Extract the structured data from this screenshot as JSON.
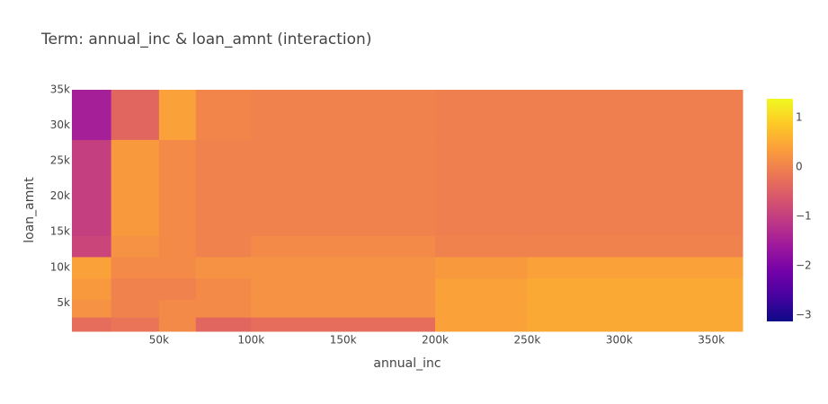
{
  "chart_data": {
    "type": "heatmap",
    "title": "Term: annual_inc & loan_amnt (interaction)",
    "x_label": "annual_inc",
    "y_label": "loan_amnt",
    "x_edges": [
      2700,
      24000,
      50000,
      70000,
      100000,
      200000,
      250000,
      367000
    ],
    "y_edges": [
      1000,
      3000,
      5500,
      8500,
      11500,
      14500,
      28000,
      35000
    ],
    "z": [
      [
        -0.3,
        -0.2,
        0.1,
        -0.4,
        -0.3,
        0.4,
        0.5
      ],
      [
        0.2,
        0.0,
        0.1,
        0.1,
        0.2,
        0.4,
        0.5
      ],
      [
        0.3,
        0.0,
        0.0,
        0.1,
        0.2,
        0.4,
        0.5
      ],
      [
        0.4,
        0.1,
        0.1,
        0.2,
        0.2,
        0.3,
        0.4
      ],
      [
        -0.9,
        0.2,
        0.1,
        0.0,
        0.1,
        0.0,
        0.0
      ],
      [
        -1.0,
        0.3,
        0.1,
        0.0,
        0.0,
        -0.05,
        -0.05
      ],
      [
        -1.5,
        -0.4,
        0.4,
        0.05,
        0.0,
        -0.05,
        -0.05
      ]
    ],
    "xlim": [
      2700,
      367000
    ],
    "ylim": [
      1000,
      35000
    ],
    "zlim": [
      -3.13,
      1.38
    ],
    "xticks": [
      {
        "value": 50000,
        "label": "50k"
      },
      {
        "value": 100000,
        "label": "100k"
      },
      {
        "value": 150000,
        "label": "150k"
      },
      {
        "value": 200000,
        "label": "200k"
      },
      {
        "value": 250000,
        "label": "250k"
      },
      {
        "value": 300000,
        "label": "300k"
      },
      {
        "value": 350000,
        "label": "350k"
      }
    ],
    "yticks": [
      {
        "value": 5000,
        "label": "5k"
      },
      {
        "value": 10000,
        "label": "10k"
      },
      {
        "value": 15000,
        "label": "15k"
      },
      {
        "value": 20000,
        "label": "20k"
      },
      {
        "value": 25000,
        "label": "25k"
      },
      {
        "value": 30000,
        "label": "30k"
      },
      {
        "value": 35000,
        "label": "35k"
      }
    ],
    "zticks": [
      {
        "value": -3,
        "label": "−3"
      },
      {
        "value": -2,
        "label": "−2"
      },
      {
        "value": -1,
        "label": "−1"
      },
      0,
      1
    ],
    "colorscale": [
      "#0d0887",
      "#46039f",
      "#7201a8",
      "#9c179e",
      "#bd3786",
      "#d8576b",
      "#ed7953",
      "#fb9f3a",
      "#fdca26",
      "#f0f921"
    ]
  }
}
